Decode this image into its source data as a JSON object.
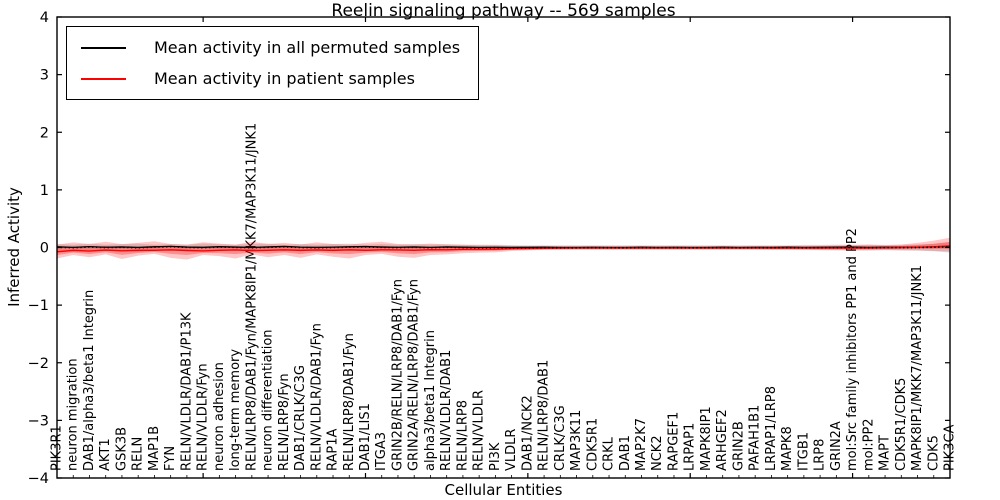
{
  "chart_data": {
    "type": "line",
    "title": "Reelin signaling pathway -- 569 samples",
    "xlabel": "Cellular Entities",
    "ylabel": "Inferred Activity",
    "ylim": [
      -4,
      4
    ],
    "yticks": [
      "4",
      "3",
      "2",
      "1",
      "0",
      "−1",
      "−2",
      "−3",
      "−4"
    ],
    "grid": false,
    "legend_position": "upper left",
    "legend": [
      {
        "label": "Mean activity in all permuted samples",
        "color": "#000000"
      },
      {
        "label": "Mean activity in patient samples",
        "color": "#ff0000"
      }
    ],
    "colors": {
      "permuted_line": "#000000",
      "patient_line": "#ff0000",
      "permuted_band": "rgba(0,0,0,0.13)",
      "patient_band": "rgba(255,0,0,0.22)"
    },
    "categories": [
      "PIK3R1",
      "neuron migration",
      "DAB1/alpha3/beta1 Integrin",
      "AKT1",
      "GSK3B",
      "RELN",
      "MAP1B",
      "FYN",
      "RELN/VLDLR/DAB1/P13K",
      "RELN/VLDLR/Fyn",
      "neuron adhesion",
      "long-term memory",
      "RELN/LRP8/DAB1/Fyn/MAPK8IP1/MKK7/MAP3K11/JNK1",
      "neuron differentiation",
      "RELN/LRP8/Fyn",
      "DAB1/CRLK/C3G",
      "RELN/VLDLR/DAB1/Fyn",
      "RAP1A",
      "RELN/LRP8/DAB1/Fyn",
      "DAB1/LIS1",
      "ITGA3",
      "GRIN2B/RELN/LRP8/DAB1/Fyn",
      "GRIN2A/RELN/LRP8/DAB1/Fyn",
      "alpha3/beta1 Integrin",
      "RELN/VLDLR/DAB1",
      "RELN/LRP8",
      "RELN/VLDLR",
      "PI3K",
      "VLDLR",
      "DAB1/NCK2",
      "RELN/LRP8/DAB1",
      "CRLK/C3G",
      "MAP3K11",
      "CDK5R1",
      "CRKL",
      "DAB1",
      "MAP2K7",
      "NCK2",
      "RAPGEF1",
      "LRPAP1",
      "MAPK8IP1",
      "ARHGEF2",
      "GRIN2B",
      "PAFAH1B1",
      "LRPAP1/LRP8",
      "MAPK8",
      "ITGB1",
      "LRP8",
      "GRIN2A",
      "mol:Src family inhibitors PP1 and PP2",
      "mol:PP2",
      "MAPT",
      "CDK5R1/CDK5",
      "MAPK8IP1/MKK7/MAP3K11/JNK1",
      "CDK5",
      "PIK3CA"
    ],
    "series": [
      {
        "name": "permuted_mean",
        "label": "Mean activity in all permuted samples",
        "color": "#000000",
        "values": [
          0.012,
          0.002,
          0.015,
          0.004,
          0.01,
          0.001,
          0.012,
          0.02,
          0.008,
          0.003,
          0.014,
          0.008,
          0.001,
          0.01,
          0.018,
          0.006,
          0.001,
          0.006,
          0.012,
          0.016,
          0.008,
          0.004,
          0.01,
          0.002,
          0.01,
          0.005,
          0.002,
          0.004,
          0.002,
          0.003,
          0.005,
          0.002,
          0.001,
          0.004,
          0.002,
          0.001,
          0.005,
          0.002,
          0.004,
          0.001,
          0.002,
          0.005,
          0.001,
          0.004,
          0.002,
          0.005,
          0.001,
          0.003,
          0.005,
          0.008,
          0.002,
          0.005,
          0.004,
          0.006,
          0.01,
          0.018
        ]
      },
      {
        "name": "patient_mean",
        "label": "Mean activity in patient samples",
        "color": "#ff0000",
        "values": [
          -0.075,
          -0.05,
          -0.062,
          -0.045,
          -0.058,
          -0.05,
          -0.048,
          -0.04,
          -0.052,
          -0.06,
          -0.048,
          -0.042,
          -0.055,
          -0.048,
          -0.04,
          -0.05,
          -0.042,
          -0.05,
          -0.04,
          -0.048,
          -0.04,
          -0.042,
          -0.048,
          -0.038,
          -0.04,
          -0.032,
          -0.03,
          -0.028,
          -0.02,
          -0.018,
          -0.014,
          -0.012,
          -0.01,
          -0.01,
          -0.01,
          -0.01,
          -0.01,
          -0.01,
          -0.01,
          -0.01,
          -0.01,
          -0.01,
          -0.01,
          -0.01,
          -0.01,
          -0.01,
          -0.01,
          -0.01,
          -0.01,
          -0.01,
          -0.01,
          -0.006,
          0.0,
          0.004,
          0.012,
          0.03
        ]
      }
    ],
    "bands": [
      {
        "name": "permuted_std",
        "color": "rgba(0,0,0,0.13)",
        "upper": [
          0.06,
          0.05,
          0.068,
          0.05,
          0.06,
          0.068,
          0.05,
          0.06,
          0.05,
          0.068,
          0.058,
          0.05,
          0.062,
          0.068,
          0.05,
          0.06,
          0.05,
          0.06,
          0.068,
          0.05,
          0.06,
          0.05,
          0.06,
          0.05,
          0.058,
          0.05,
          0.05,
          0.048,
          0.042,
          0.04,
          0.04,
          0.04,
          0.04,
          0.04,
          0.04,
          0.04,
          0.04,
          0.04,
          0.04,
          0.04,
          0.04,
          0.04,
          0.04,
          0.04,
          0.04,
          0.04,
          0.045,
          0.045,
          0.05,
          0.05,
          0.05,
          0.045,
          0.05,
          0.055,
          0.065,
          0.09
        ],
        "lower": [
          -0.06,
          -0.052,
          -0.062,
          -0.058,
          -0.05,
          -0.068,
          -0.05,
          -0.06,
          -0.058,
          -0.05,
          -0.06,
          -0.05,
          -0.068,
          -0.052,
          -0.06,
          -0.05,
          -0.06,
          -0.05,
          -0.06,
          -0.062,
          -0.05,
          -0.058,
          -0.05,
          -0.058,
          -0.05,
          -0.05,
          -0.05,
          -0.048,
          -0.042,
          -0.04,
          -0.04,
          -0.04,
          -0.04,
          -0.04,
          -0.04,
          -0.04,
          -0.04,
          -0.04,
          -0.04,
          -0.04,
          -0.04,
          -0.04,
          -0.04,
          -0.04,
          -0.04,
          -0.04,
          -0.045,
          -0.045,
          -0.05,
          -0.05,
          -0.05,
          -0.045,
          -0.05,
          -0.055,
          -0.065,
          -0.09
        ]
      },
      {
        "name": "patient_std",
        "color": "rgba(255,0,0,0.22)",
        "upper": [
          0.05,
          0.09,
          0.06,
          0.1,
          0.058,
          0.08,
          0.108,
          0.06,
          0.05,
          0.092,
          0.068,
          0.05,
          0.1,
          0.06,
          0.08,
          0.052,
          0.09,
          0.06,
          0.05,
          0.08,
          0.1,
          0.06,
          0.05,
          0.07,
          0.052,
          0.048,
          0.04,
          0.038,
          0.03,
          0.022,
          0.02,
          0.02,
          0.02,
          0.02,
          0.02,
          0.02,
          0.02,
          0.02,
          0.02,
          0.02,
          0.02,
          0.02,
          0.02,
          0.02,
          0.025,
          0.025,
          0.03,
          0.03,
          0.035,
          0.04,
          0.05,
          0.04,
          0.05,
          0.08,
          0.12,
          0.17
        ],
        "lower": [
          -0.19,
          -0.13,
          -0.17,
          -0.12,
          -0.2,
          -0.14,
          -0.11,
          -0.18,
          -0.21,
          -0.13,
          -0.15,
          -0.19,
          -0.12,
          -0.17,
          -0.13,
          -0.18,
          -0.12,
          -0.16,
          -0.19,
          -0.13,
          -0.11,
          -0.16,
          -0.18,
          -0.13,
          -0.12,
          -0.1,
          -0.09,
          -0.085,
          -0.06,
          -0.05,
          -0.042,
          -0.04,
          -0.035,
          -0.035,
          -0.035,
          -0.035,
          -0.035,
          -0.035,
          -0.035,
          -0.035,
          -0.035,
          -0.035,
          -0.035,
          -0.035,
          -0.04,
          -0.04,
          -0.04,
          -0.045,
          -0.045,
          -0.05,
          -0.05,
          -0.045,
          -0.05,
          -0.05,
          -0.06,
          -0.07
        ]
      }
    ]
  }
}
